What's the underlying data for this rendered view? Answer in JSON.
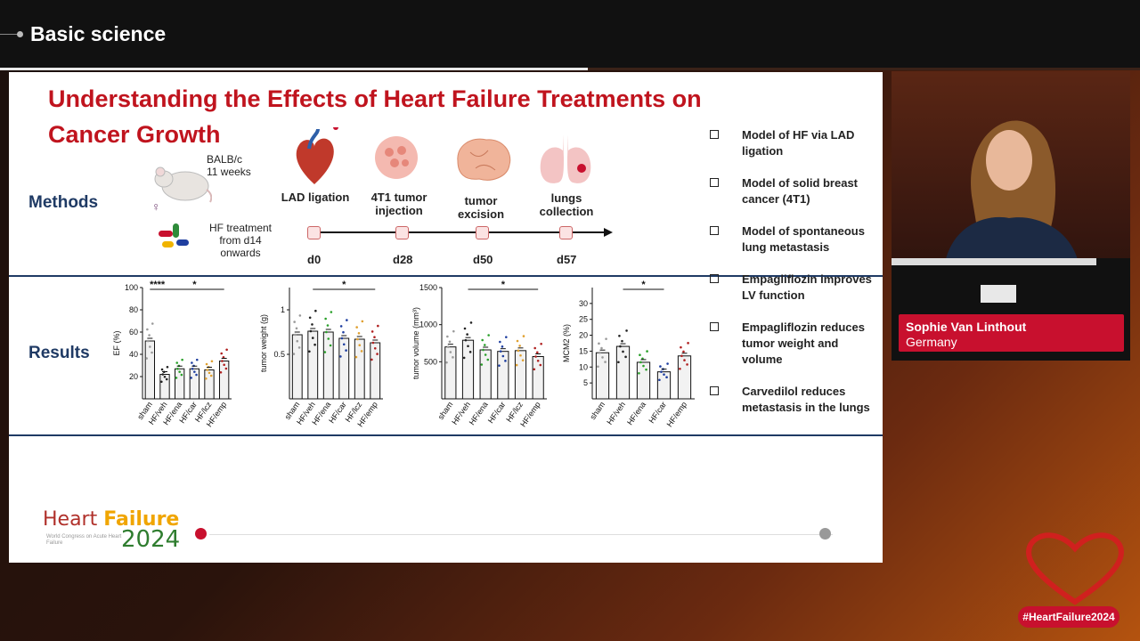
{
  "session": {
    "title": "Basic science"
  },
  "slide": {
    "title": "Understanding the Effects of Heart Failure Treatments on Cancer Growth",
    "methods_label": "Methods",
    "results_label": "Results",
    "mouse": {
      "strain": "BALB/c",
      "age": "11 weeks",
      "sex_symbol": "♀"
    },
    "treatment": "HF treatment from d14 onwards",
    "timeline": [
      {
        "step": "LAD ligation",
        "day": "d0"
      },
      {
        "step": "4T1 tumor injection",
        "day": "d28"
      },
      {
        "step": "tumor excision",
        "day": "d50"
      },
      {
        "step": "lungs collection",
        "day": "d57"
      }
    ],
    "bullets": [
      "Model of HF via LAD ligation",
      "Model of solid breast cancer (4T1)",
      "Model of spontaneous lung metastasis",
      "Empagliflozin improves LV function",
      "Empagliflozin reduces tumor weight and volume",
      "Carvedilol reduces metastasis in the lungs"
    ],
    "logo": {
      "line1a": "Heart ",
      "line1b": "Failure",
      "year": "2024",
      "sub": "World Congress on Acute Heart Failure",
      "ampersand": "&"
    }
  },
  "speaker": {
    "name": "Sophie Van Linthout",
    "country": "Germany"
  },
  "hashtag": "#HeartFailure2024",
  "chart_data": [
    {
      "type": "bar",
      "ylabel": "EF (%)",
      "ylim": [
        0,
        100
      ],
      "yticks": [
        20,
        40,
        60,
        80,
        100
      ],
      "categories": [
        "sham",
        "HF/veh",
        "HF/ena",
        "HF/car",
        "HF/lcz",
        "HF/emp"
      ],
      "values": [
        52,
        22,
        27,
        27,
        26,
        34
      ],
      "colors": [
        "#9a9a9a",
        "#222222",
        "#2aa02a",
        "#1f3fa0",
        "#e0a030",
        "#b02020"
      ],
      "annotations": [
        {
          "text": "****",
          "from": 0,
          "to": 1
        },
        {
          "text": "*",
          "from": 1,
          "to": 5
        }
      ]
    },
    {
      "type": "bar",
      "ylabel": "tumor weight (g)",
      "ylim": [
        0,
        1.25
      ],
      "yticks": [
        0.5,
        1.0
      ],
      "categories": [
        "sham",
        "HF/veh",
        "HF/ena",
        "HF/car",
        "HF/lcz",
        "HF/emp"
      ],
      "values": [
        0.72,
        0.76,
        0.75,
        0.68,
        0.67,
        0.63
      ],
      "colors": [
        "#9a9a9a",
        "#222222",
        "#2aa02a",
        "#1f3fa0",
        "#e0a030",
        "#b02020"
      ],
      "annotations": [
        {
          "text": "*",
          "from": 1,
          "to": 5
        }
      ]
    },
    {
      "type": "bar",
      "ylabel": "tumor volume (mm³)",
      "ylim": [
        0,
        1500
      ],
      "yticks": [
        500,
        1000,
        1500
      ],
      "categories": [
        "sham",
        "HF/veh",
        "HF/ena",
        "HF/car",
        "HF/lcz",
        "HF/emp"
      ],
      "values": [
        700,
        790,
        660,
        640,
        650,
        570
      ],
      "colors": [
        "#9a9a9a",
        "#222222",
        "#2aa02a",
        "#1f3fa0",
        "#e0a030",
        "#b02020"
      ],
      "annotations": [
        {
          "text": "*",
          "from": 1,
          "to": 5
        }
      ]
    },
    {
      "type": "bar",
      "ylabel": "MCM2 (%)",
      "ylim": [
        0,
        35
      ],
      "yticks": [
        5,
        10,
        15,
        20,
        25,
        30
      ],
      "categories": [
        "sham",
        "HF/veh",
        "HF/ena",
        "HF/car",
        "HF/emp"
      ],
      "values": [
        14.5,
        16.5,
        11.5,
        8.5,
        13.5
      ],
      "colors": [
        "#9a9a9a",
        "#222222",
        "#2aa02a",
        "#1f3fa0",
        "#b02020"
      ],
      "annotations": [
        {
          "text": "*",
          "from": 1,
          "to": 3
        }
      ]
    }
  ]
}
